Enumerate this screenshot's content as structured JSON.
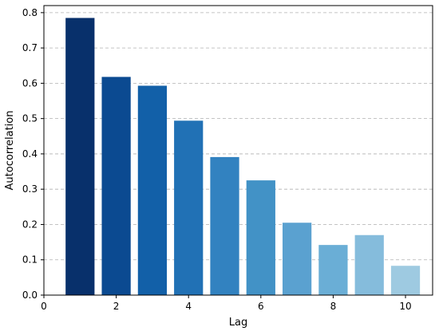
{
  "chart_data": {
    "type": "bar",
    "title": "",
    "xlabel": "Lag",
    "ylabel": "Autocorrelation",
    "categories": [
      1,
      2,
      3,
      4,
      5,
      6,
      7,
      8,
      9,
      10
    ],
    "values": [
      0.785,
      0.618,
      0.593,
      0.494,
      0.391,
      0.325,
      0.205,
      0.142,
      0.17,
      0.083
    ],
    "xlim": [
      0,
      10.75
    ],
    "ylim": [
      0,
      0.82
    ],
    "x_ticks": [
      0,
      2,
      4,
      6,
      8,
      10
    ],
    "y_ticks": [
      0.0,
      0.1,
      0.2,
      0.3,
      0.4,
      0.5,
      0.6,
      0.7,
      0.8
    ],
    "y_tick_labels": [
      "0.0",
      "0.1",
      "0.2",
      "0.3",
      "0.4",
      "0.5",
      "0.6",
      "0.7",
      "0.8"
    ],
    "x_tick_labels": [
      "0",
      "2",
      "4",
      "6",
      "8",
      "10"
    ],
    "grid": "y-dashed",
    "colors": [
      "#08306b",
      "#0b4a91",
      "#1260a8",
      "#2171b5",
      "#3282c0",
      "#4292c6",
      "#5aa1d0",
      "#6aaed6",
      "#85bcdc",
      "#9ecae1"
    ]
  }
}
